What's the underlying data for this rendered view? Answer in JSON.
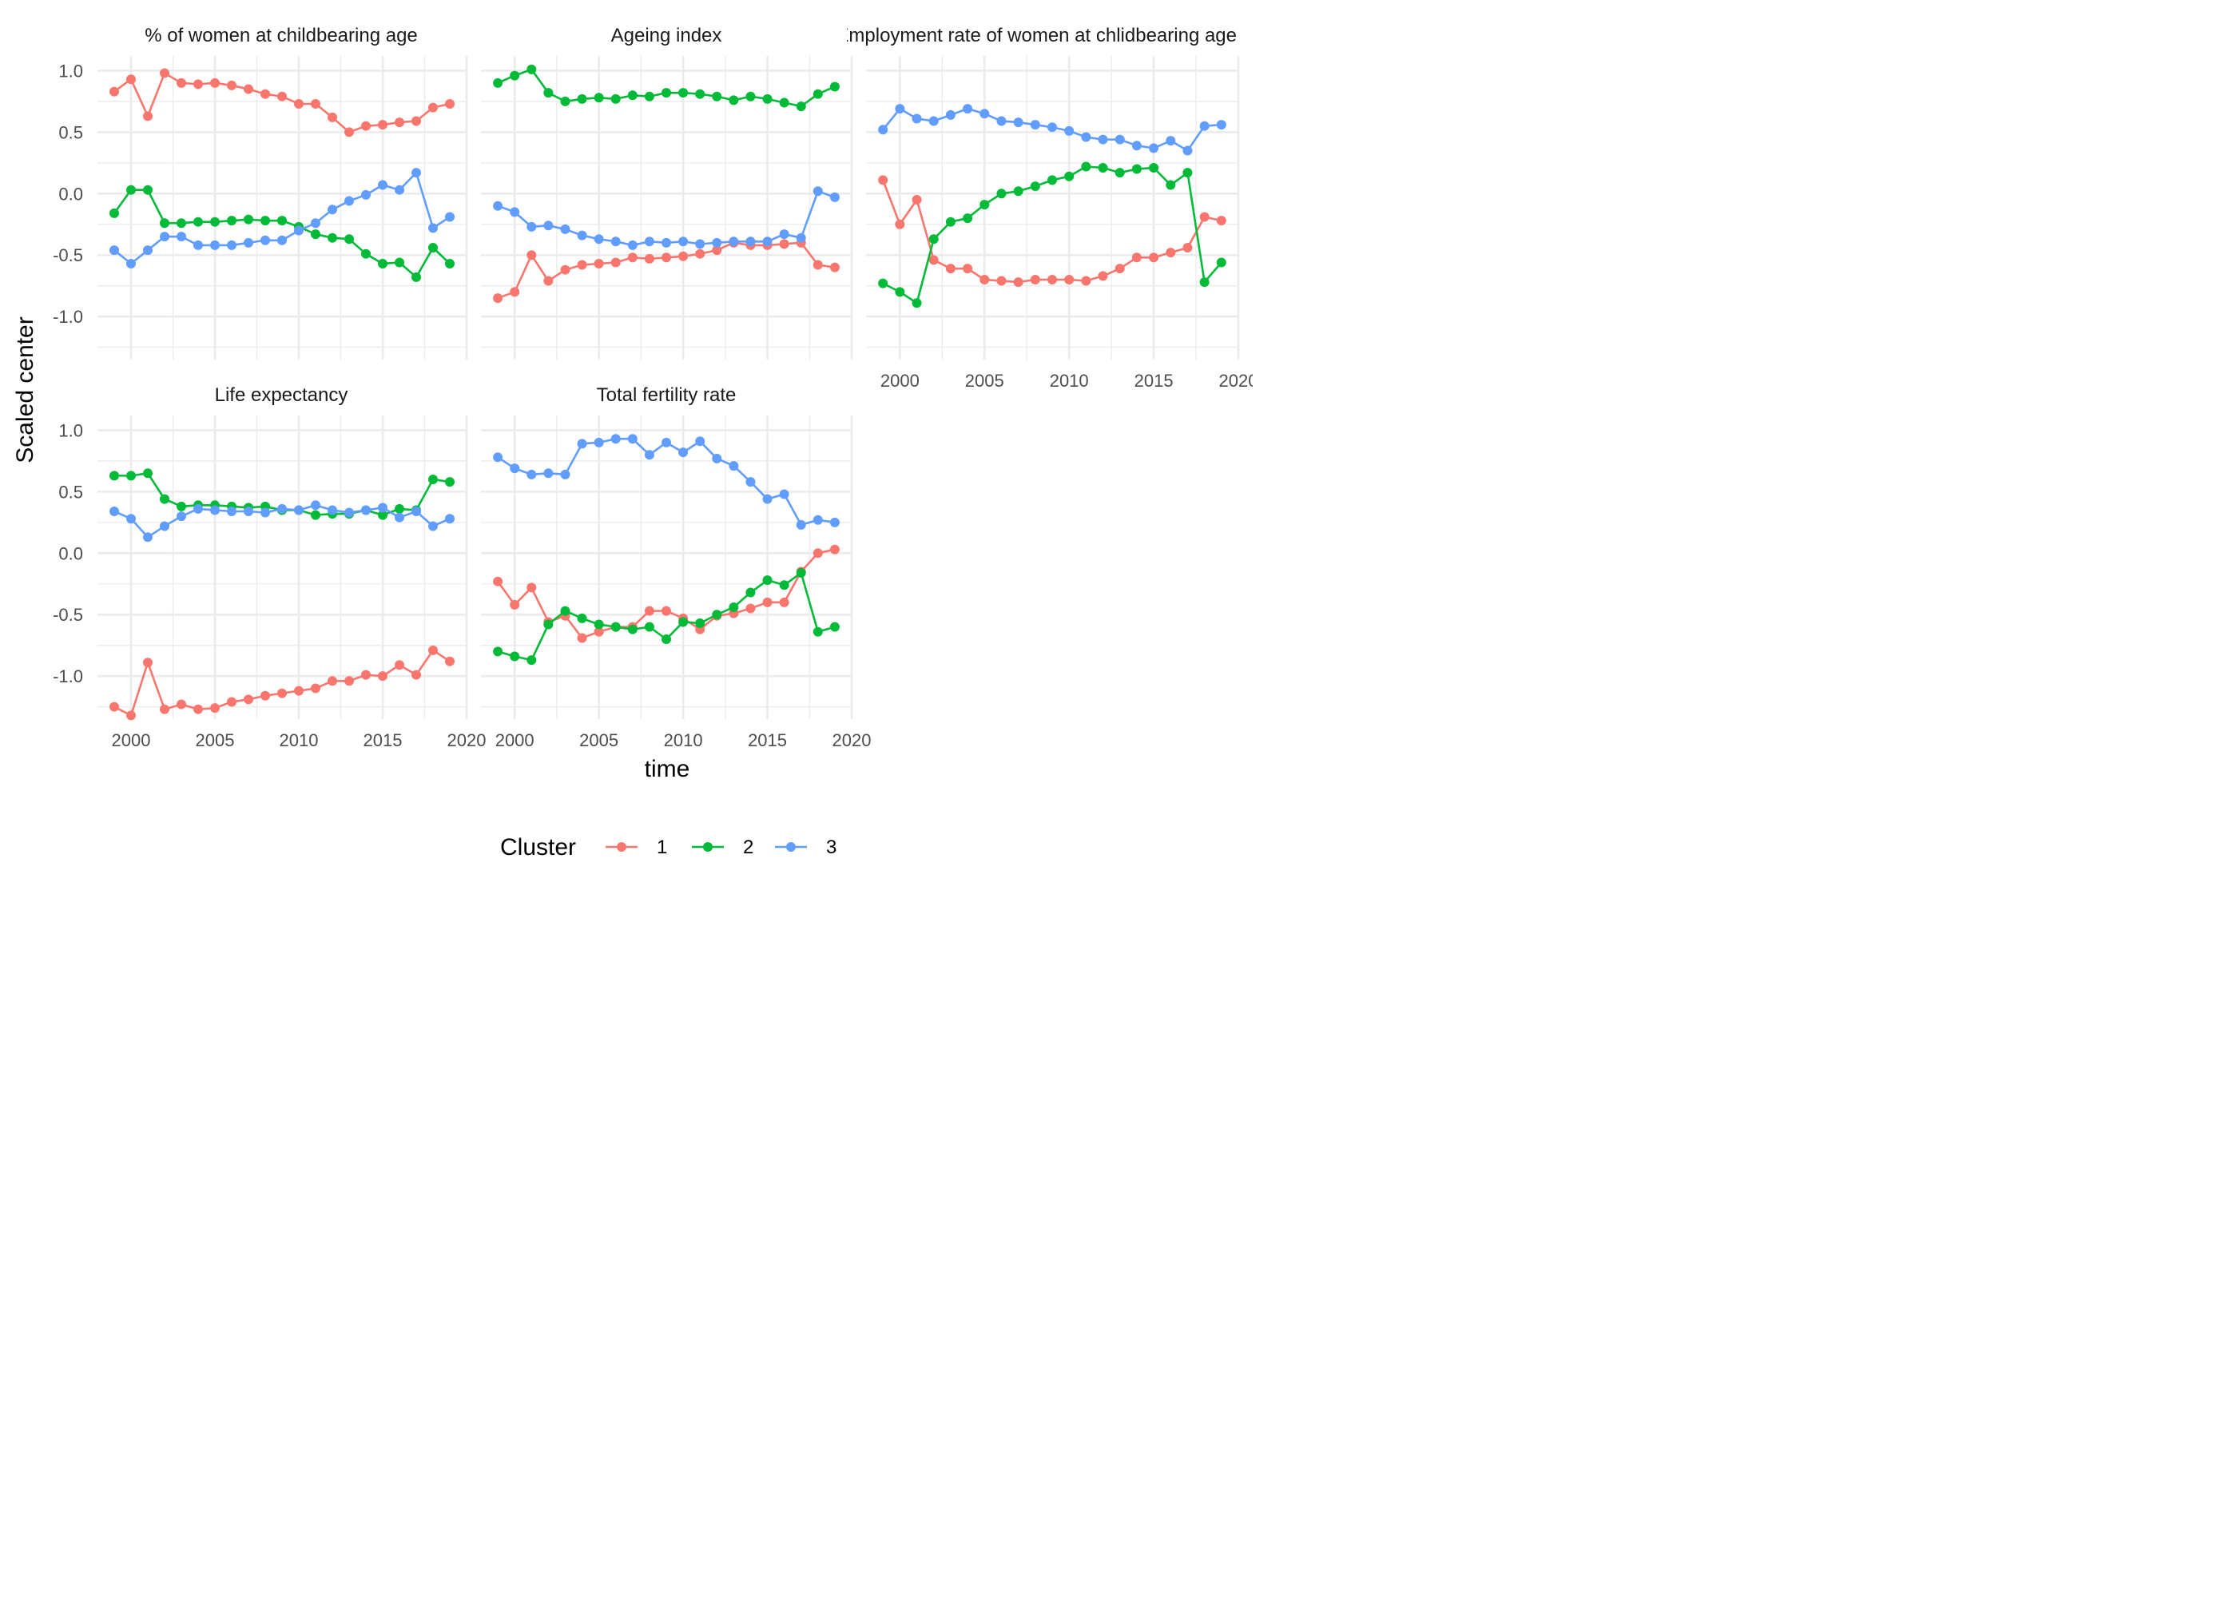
{
  "chart_data": {
    "type": "line",
    "xlabel": "time",
    "ylabel": "Scaled center",
    "legend_title": "Cluster",
    "legend_position": "bottom",
    "grid": true,
    "x": [
      1999,
      2000,
      2001,
      2002,
      2003,
      2004,
      2005,
      2006,
      2007,
      2008,
      2009,
      2010,
      2011,
      2012,
      2013,
      2014,
      2015,
      2016,
      2017,
      2018,
      2019
    ],
    "xlim": [
      1998,
      2020
    ],
    "ylim": [
      -1.35,
      1.12
    ],
    "x_ticks": [
      "2000",
      "2005",
      "2010",
      "2015",
      "2020"
    ],
    "y_ticks": [
      "1.0",
      "0.5",
      "0.0",
      "-0.5",
      "-1.0"
    ],
    "clusters": [
      {
        "name": "1",
        "color": "#F8766D"
      },
      {
        "name": "2",
        "color": "#00BA38"
      },
      {
        "name": "3",
        "color": "#619CFF"
      }
    ],
    "panels": [
      {
        "title": "% of women at childbearing age",
        "series": [
          {
            "name": "1",
            "values": [
              0.83,
              0.93,
              0.63,
              0.98,
              0.9,
              0.89,
              0.9,
              0.88,
              0.85,
              0.81,
              0.79,
              0.73,
              0.73,
              0.62,
              0.5,
              0.55,
              0.56,
              0.58,
              0.59,
              0.7,
              0.73
            ]
          },
          {
            "name": "2",
            "values": [
              -0.16,
              0.03,
              0.03,
              -0.24,
              -0.24,
              -0.23,
              -0.23,
              -0.22,
              -0.21,
              -0.22,
              -0.22,
              -0.27,
              -0.33,
              -0.36,
              -0.37,
              -0.49,
              -0.57,
              -0.56,
              -0.68,
              -0.44,
              -0.57
            ]
          },
          {
            "name": "3",
            "values": [
              -0.46,
              -0.57,
              -0.46,
              -0.35,
              -0.35,
              -0.42,
              -0.42,
              -0.42,
              -0.4,
              -0.38,
              -0.38,
              -0.3,
              -0.24,
              -0.13,
              -0.06,
              -0.01,
              0.07,
              0.03,
              0.17,
              -0.28,
              -0.19
            ]
          }
        ]
      },
      {
        "title": "Ageing index",
        "series": [
          {
            "name": "1",
            "values": [
              -0.85,
              -0.8,
              -0.5,
              -0.71,
              -0.62,
              -0.58,
              -0.57,
              -0.56,
              -0.52,
              -0.53,
              -0.52,
              -0.51,
              -0.49,
              -0.46,
              -0.4,
              -0.42,
              -0.42,
              -0.41,
              -0.4,
              -0.58,
              -0.6
            ]
          },
          {
            "name": "2",
            "values": [
              0.9,
              0.96,
              1.01,
              0.82,
              0.75,
              0.77,
              0.78,
              0.77,
              0.8,
              0.79,
              0.82,
              0.82,
              0.81,
              0.79,
              0.76,
              0.79,
              0.77,
              0.74,
              0.71,
              0.81,
              0.87
            ]
          },
          {
            "name": "3",
            "values": [
              -0.1,
              -0.15,
              -0.27,
              -0.26,
              -0.29,
              -0.34,
              -0.37,
              -0.39,
              -0.42,
              -0.39,
              -0.4,
              -0.39,
              -0.41,
              -0.4,
              -0.39,
              -0.39,
              -0.39,
              -0.33,
              -0.36,
              0.02,
              -0.03
            ]
          }
        ]
      },
      {
        "title": "Employment rate of women at chlidbearing age",
        "series": [
          {
            "name": "1",
            "values": [
              0.11,
              -0.25,
              -0.05,
              -0.54,
              -0.61,
              -0.61,
              -0.7,
              -0.71,
              -0.72,
              -0.7,
              -0.7,
              -0.7,
              -0.71,
              -0.67,
              -0.61,
              -0.52,
              -0.52,
              -0.48,
              -0.44,
              -0.19,
              -0.22
            ]
          },
          {
            "name": "2",
            "values": [
              -0.73,
              -0.8,
              -0.89,
              -0.37,
              -0.23,
              -0.2,
              -0.09,
              0.0,
              0.02,
              0.06,
              0.11,
              0.14,
              0.22,
              0.21,
              0.17,
              0.2,
              0.21,
              0.07,
              0.17,
              -0.72,
              -0.56
            ]
          },
          {
            "name": "3",
            "values": [
              0.52,
              0.69,
              0.61,
              0.59,
              0.64,
              0.69,
              0.65,
              0.59,
              0.58,
              0.56,
              0.54,
              0.51,
              0.46,
              0.44,
              0.44,
              0.39,
              0.37,
              0.43,
              0.35,
              0.55,
              0.56
            ]
          }
        ]
      },
      {
        "title": "Life expectancy",
        "series": [
          {
            "name": "1",
            "values": [
              -1.25,
              -1.32,
              -0.89,
              -1.27,
              -1.23,
              -1.27,
              -1.26,
              -1.21,
              -1.19,
              -1.16,
              -1.14,
              -1.12,
              -1.1,
              -1.04,
              -1.04,
              -0.99,
              -1.0,
              -0.91,
              -0.99,
              -0.79,
              -0.88
            ]
          },
          {
            "name": "2",
            "values": [
              0.63,
              0.63,
              0.65,
              0.44,
              0.38,
              0.39,
              0.39,
              0.38,
              0.37,
              0.38,
              0.35,
              0.35,
              0.31,
              0.32,
              0.32,
              0.35,
              0.31,
              0.36,
              0.35,
              0.6,
              0.58
            ]
          },
          {
            "name": "3",
            "values": [
              0.34,
              0.28,
              0.13,
              0.22,
              0.3,
              0.36,
              0.35,
              0.34,
              0.34,
              0.33,
              0.36,
              0.35,
              0.39,
              0.35,
              0.33,
              0.35,
              0.37,
              0.29,
              0.34,
              0.22,
              0.28
            ]
          }
        ]
      },
      {
        "title": "Total fertility rate",
        "series": [
          {
            "name": "1",
            "values": [
              -0.23,
              -0.42,
              -0.28,
              -0.56,
              -0.51,
              -0.69,
              -0.64,
              -0.6,
              -0.6,
              -0.47,
              -0.47,
              -0.53,
              -0.62,
              -0.51,
              -0.49,
              -0.45,
              -0.4,
              -0.4,
              -0.15,
              0.0,
              0.03
            ]
          },
          {
            "name": "2",
            "values": [
              -0.8,
              -0.84,
              -0.87,
              -0.58,
              -0.47,
              -0.53,
              -0.58,
              -0.6,
              -0.62,
              -0.6,
              -0.7,
              -0.56,
              -0.57,
              -0.5,
              -0.44,
              -0.32,
              -0.22,
              -0.26,
              -0.16,
              -0.64,
              -0.6
            ]
          },
          {
            "name": "3",
            "values": [
              0.78,
              0.69,
              0.64,
              0.65,
              0.64,
              0.89,
              0.9,
              0.93,
              0.93,
              0.8,
              0.9,
              0.82,
              0.91,
              0.77,
              0.71,
              0.58,
              0.44,
              0.48,
              0.23,
              0.27,
              0.25
            ]
          }
        ]
      }
    ]
  }
}
